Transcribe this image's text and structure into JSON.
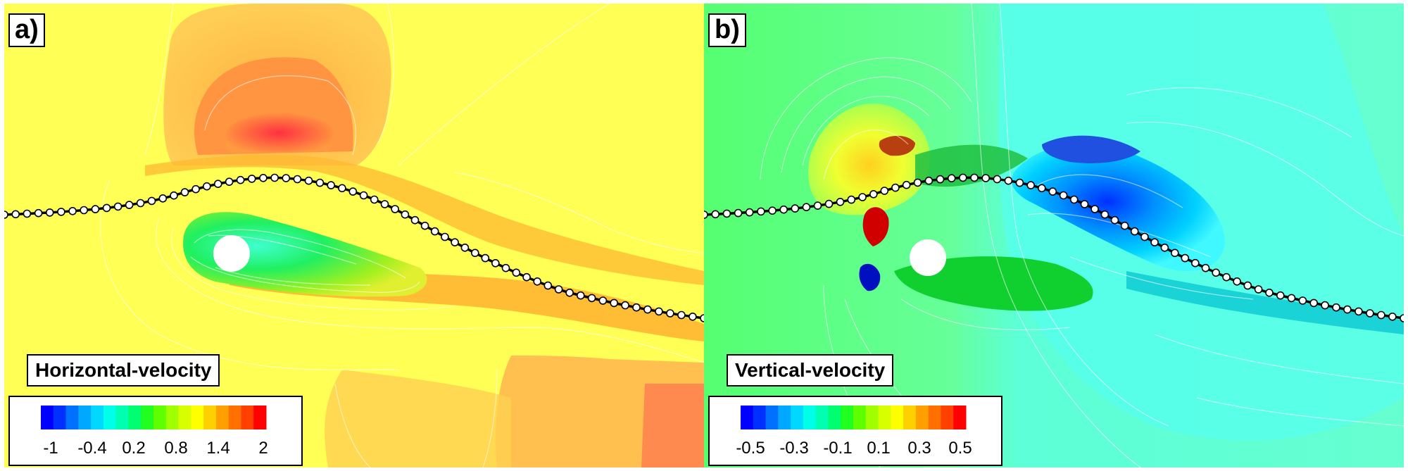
{
  "panels": [
    {
      "label": "a)",
      "title": "Horizontal-velocity",
      "colorbar_ticks": [
        "-1",
        "-0.4",
        "0.2",
        "0.8",
        "1.4",
        "2"
      ]
    },
    {
      "label": "b)",
      "title": "Vertical-velocity",
      "colorbar_ticks": [
        "-0.5",
        "-0.3",
        "-0.1",
        "0.1",
        "0.3",
        "0.5"
      ]
    }
  ],
  "colors": {
    "colormap": [
      "#0000ff",
      "#0030ff",
      "#0070ff",
      "#00a8ff",
      "#00d8ff",
      "#00ffe8",
      "#00ffb0",
      "#00ff70",
      "#20ff20",
      "#60ff00",
      "#a0ff00",
      "#d8ff00",
      "#ffff00",
      "#ffd000",
      "#ffa000",
      "#ff7000",
      "#ff4000",
      "#ff0000"
    ],
    "panel_a_background": "#ffff55",
    "panel_b_background": "#66ff88"
  }
}
